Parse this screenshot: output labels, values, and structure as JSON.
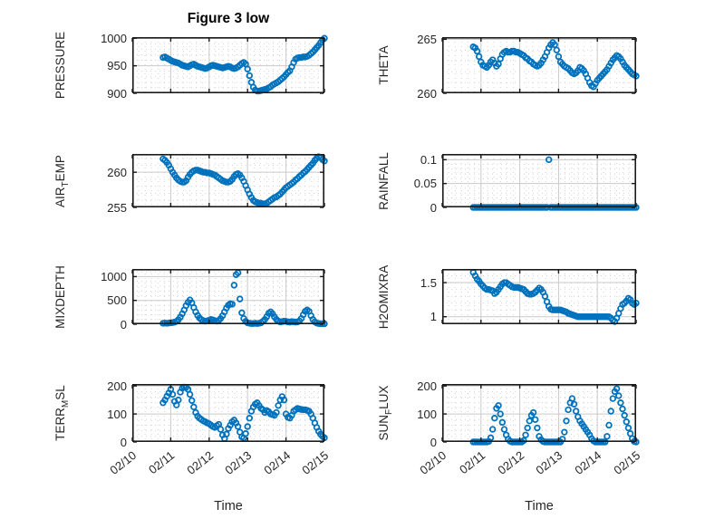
{
  "title": "Figure 3 low",
  "xlabel": "Time",
  "colors": {
    "marker": "#0072BD",
    "axis": "#1a1a1a",
    "major_grid": "#c9c9c9",
    "minor_grid": "#d2d2d2",
    "text": "#262626",
    "background": "#ffffff"
  },
  "time_axis": {
    "xlim_days": [
      0,
      5
    ],
    "major_tick_labels": [
      "02/10",
      "02/11",
      "02/12",
      "02/13",
      "02/14",
      "02/15"
    ],
    "minor_ticks_per_day": 6
  },
  "chart_data": [
    {
      "type": "scatter",
      "name": "pressure",
      "label": "PRESSURE",
      "label_parts": {
        "pre": "PRESSURE",
        "sub": "",
        "post": ""
      },
      "ylim": [
        900,
        1002
      ],
      "yticks": [
        900,
        950,
        1000
      ],
      "ytick_labels": [
        "900",
        "950",
        "1000"
      ],
      "minor_dy": 10,
      "grid": "major+minor",
      "series": {
        "t0": 0.8,
        "dt": 0.05,
        "values": [
          965,
          966,
          964,
          962,
          960,
          958,
          957,
          956,
          955,
          953,
          951,
          950,
          949,
          948,
          950,
          952,
          953,
          951,
          949,
          948,
          947,
          946,
          945,
          946,
          948,
          950,
          951,
          950,
          949,
          948,
          947,
          946,
          947,
          948,
          949,
          948,
          946,
          945,
          946,
          948,
          951,
          954,
          956,
          953,
          944,
          932,
          920,
          911,
          906,
          904,
          904,
          905,
          906,
          907,
          908,
          910,
          912,
          915,
          917,
          919,
          921,
          924,
          927,
          930,
          934,
          938,
          941,
          948,
          956,
          962,
          964,
          965,
          965,
          966,
          966,
          967,
          969,
          972,
          975,
          979,
          983,
          987,
          992,
          997,
          1000
        ]
      }
    },
    {
      "type": "scatter",
      "name": "theta",
      "label": "THETA",
      "label_parts": {
        "pre": "THETA",
        "sub": "",
        "post": ""
      },
      "ylim": [
        260,
        265.2
      ],
      "yticks": [
        260,
        265
      ],
      "ytick_labels": [
        "260",
        "265"
      ],
      "minor_dy": 1,
      "grid": "major+minor",
      "series": {
        "t0": 0.8,
        "dt": 0.05,
        "values": [
          264.3,
          264.2,
          263.9,
          263.4,
          262.9,
          262.6,
          262.5,
          262.4,
          262.6,
          262.9,
          263.1,
          262.8,
          262.5,
          262.7,
          263.2,
          263.6,
          263.8,
          263.9,
          263.8,
          263.8,
          263.9,
          263.9,
          263.8,
          263.8,
          263.7,
          263.6,
          263.5,
          263.3,
          263.2,
          263.0,
          262.9,
          262.7,
          262.6,
          262.5,
          262.6,
          262.8,
          263.1,
          263.4,
          263.8,
          264.2,
          264.5,
          264.7,
          264.5,
          264.0,
          263.4,
          262.9,
          262.7,
          262.5,
          262.4,
          262.3,
          262.1,
          261.9,
          261.8,
          261.9,
          262.1,
          262.4,
          262.3,
          262.1,
          261.8,
          261.4,
          261.0,
          260.7,
          260.6,
          260.9,
          261.2,
          261.4,
          261.6,
          261.8,
          262.0,
          262.2,
          262.5,
          262.8,
          263.1,
          263.3,
          263.5,
          263.4,
          263.2,
          262.9,
          262.6,
          262.4,
          262.2,
          262.0,
          261.8,
          261.7,
          261.6
        ]
      }
    },
    {
      "type": "scatter",
      "name": "air-temp",
      "label": "AIR_TEMP",
      "label_parts": {
        "pre": "AIR",
        "sub": "T",
        "post": "EMP"
      },
      "ylim": [
        255,
        262.6
      ],
      "yticks": [
        255,
        260
      ],
      "ytick_labels": [
        "255",
        "260"
      ],
      "minor_dy": 1,
      "grid": "major+minor",
      "series": {
        "t0": 0.8,
        "dt": 0.05,
        "values": [
          261.9,
          261.7,
          261.4,
          261.0,
          260.5,
          260.0,
          259.6,
          259.2,
          258.9,
          258.7,
          258.6,
          258.6,
          258.8,
          259.3,
          259.7,
          260.0,
          260.2,
          260.3,
          260.3,
          260.2,
          260.1,
          260.0,
          260.0,
          259.9,
          259.9,
          259.8,
          259.7,
          259.6,
          259.4,
          259.2,
          259.0,
          258.8,
          258.7,
          258.6,
          258.6,
          258.7,
          259.0,
          259.4,
          259.7,
          259.8,
          259.6,
          259.2,
          258.7,
          258.1,
          257.5,
          256.9,
          256.4,
          256.0,
          255.8,
          255.7,
          255.6,
          255.6,
          255.5,
          255.5,
          255.6,
          255.8,
          256.0,
          256.2,
          256.4,
          256.5,
          256.7,
          256.9,
          257.2,
          257.5,
          257.8,
          258.0,
          258.2,
          258.4,
          258.6,
          258.9,
          259.1,
          259.4,
          259.6,
          259.9,
          260.1,
          260.4,
          260.7,
          261.0,
          261.3,
          261.7,
          262.0,
          262.2,
          262.1,
          261.8,
          261.6
        ]
      }
    },
    {
      "type": "scatter",
      "name": "rainfall",
      "label": "RAINFALL",
      "label_parts": {
        "pre": "RAINFALL",
        "sub": "",
        "post": ""
      },
      "ylim": [
        0,
        0.112
      ],
      "yticks": [
        0,
        0.05,
        0.1
      ],
      "ytick_labels": [
        "0",
        "0.05",
        "0.1"
      ],
      "minor_dy": 0.01,
      "grid": "major+minor",
      "series": {
        "t0": 0.8,
        "dt": 0.05,
        "values": [
          0,
          0,
          0,
          0,
          0,
          0,
          0,
          0,
          0,
          0,
          0,
          0,
          0,
          0,
          0,
          0,
          0,
          0,
          0,
          0,
          0,
          0,
          0,
          0,
          0,
          0,
          0,
          0,
          0,
          0,
          0,
          0,
          0,
          0,
          0,
          0,
          0,
          0,
          0,
          0.1,
          0,
          0,
          0,
          0,
          0,
          0,
          0,
          0,
          0,
          0,
          0,
          0,
          0,
          0,
          0,
          0,
          0,
          0,
          0,
          0,
          0,
          0,
          0,
          0,
          0,
          0,
          0,
          0,
          0,
          0,
          0,
          0,
          0,
          0,
          0,
          0,
          0,
          0,
          0,
          0,
          0,
          0,
          0,
          0,
          0
        ]
      }
    },
    {
      "type": "scatter",
      "name": "mixdepth",
      "label": "MIXDEPTH",
      "label_parts": {
        "pre": "MIXDEPTH",
        "sub": "",
        "post": ""
      },
      "ylim": [
        0,
        1160
      ],
      "yticks": [
        0,
        500,
        1000
      ],
      "ytick_labels": [
        "0",
        "500",
        "1000"
      ],
      "minor_dy": 100,
      "grid": "major+minor",
      "series": {
        "t0": 0.8,
        "dt": 0.05,
        "values": [
          20,
          25,
          20,
          25,
          30,
          35,
          45,
          60,
          95,
          150,
          220,
          300,
          390,
          460,
          510,
          450,
          350,
          260,
          185,
          130,
          95,
          75,
          65,
          70,
          85,
          100,
          90,
          75,
          65,
          80,
          120,
          180,
          260,
          340,
          400,
          430,
          420,
          820,
          1040,
          1080,
          530,
          240,
          120,
          60,
          30,
          20,
          15,
          15,
          20,
          15,
          20,
          30,
          60,
          100,
          160,
          230,
          260,
          220,
          155,
          100,
          65,
          50,
          55,
          65,
          60,
          50,
          45,
          55,
          50,
          45,
          50,
          70,
          120,
          200,
          270,
          300,
          270,
          180,
          100,
          50,
          25,
          15,
          12,
          10,
          10
        ]
      }
    },
    {
      "type": "scatter",
      "name": "h2omixra",
      "label": "H2OMIXRA",
      "label_parts": {
        "pre": "H2OMIXRA",
        "sub": "",
        "post": ""
      },
      "ylim": [
        0.89,
        1.7
      ],
      "yticks": [
        1,
        1.5
      ],
      "ytick_labels": [
        "1",
        "1.5"
      ],
      "minor_dy": 0.1,
      "grid": "major+minor",
      "series": {
        "t0": 0.8,
        "dt": 0.05,
        "values": [
          1.65,
          1.6,
          1.55,
          1.52,
          1.48,
          1.45,
          1.42,
          1.4,
          1.4,
          1.39,
          1.38,
          1.34,
          1.36,
          1.4,
          1.44,
          1.48,
          1.5,
          1.5,
          1.48,
          1.46,
          1.44,
          1.43,
          1.43,
          1.43,
          1.42,
          1.41,
          1.4,
          1.37,
          1.34,
          1.33,
          1.33,
          1.34,
          1.36,
          1.39,
          1.42,
          1.4,
          1.36,
          1.3,
          1.22,
          1.15,
          1.11,
          1.1,
          1.1,
          1.1,
          1.1,
          1.1,
          1.09,
          1.08,
          1.07,
          1.05,
          1.04,
          1.03,
          1.02,
          1.01,
          1.0,
          1.0,
          1.0,
          1.0,
          1.0,
          1.0,
          1.0,
          1.0,
          1.0,
          1.0,
          1.0,
          1.0,
          1.0,
          1.0,
          1.0,
          1.0,
          1.0,
          0.98,
          0.95,
          0.93,
          0.98,
          1.05,
          1.12,
          1.18,
          1.2,
          1.23,
          1.27,
          1.25,
          1.2,
          1.18,
          1.2
        ]
      }
    },
    {
      "type": "scatter",
      "name": "terr-msl",
      "label": "TERR_MSL",
      "label_parts": {
        "pre": "TERR",
        "sub": "M",
        "post": "SL"
      },
      "ylim": [
        0,
        207
      ],
      "yticks": [
        0,
        100,
        200
      ],
      "ytick_labels": [
        "0",
        "100",
        "200"
      ],
      "minor_dy": 20,
      "grid": "major+minor",
      "series": {
        "t0": 0.8,
        "dt": 0.05,
        "values": [
          140,
          150,
          163,
          175,
          188,
          170,
          145,
          132,
          150,
          178,
          192,
          196,
          195,
          188,
          170,
          148,
          125,
          105,
          92,
          85,
          80,
          75,
          72,
          68,
          65,
          60,
          55,
          52,
          58,
          63,
          45,
          25,
          12,
          28,
          48,
          60,
          72,
          78,
          68,
          55,
          35,
          18,
          14,
          30,
          55,
          85,
          110,
          125,
          135,
          140,
          130,
          120,
          115,
          105,
          112,
          108,
          100,
          98,
          95,
          105,
          130,
          150,
          162,
          150,
          100,
          88,
          85,
          95,
          110,
          115,
          120,
          118,
          116,
          115,
          115,
          113,
          110,
          100,
          85,
          68,
          52,
          38,
          28,
          20,
          15
        ]
      }
    },
    {
      "type": "scatter",
      "name": "sun-flux",
      "label": "SUN_FLUX",
      "label_parts": {
        "pre": "SUN",
        "sub": "F",
        "post": "LUX"
      },
      "ylim": [
        0,
        207
      ],
      "yticks": [
        0,
        100,
        200
      ],
      "ytick_labels": [
        "0",
        "100",
        "200"
      ],
      "minor_dy": 20,
      "grid": "major+minor",
      "series": {
        "t0": 0.8,
        "dt": 0.05,
        "values": [
          0,
          0,
          0,
          0,
          0,
          0,
          0,
          0,
          2,
          15,
          45,
          85,
          120,
          130,
          100,
          70,
          45,
          25,
          10,
          3,
          0,
          0,
          0,
          0,
          0,
          0,
          5,
          25,
          50,
          75,
          95,
          105,
          80,
          50,
          20,
          8,
          2,
          0,
          0,
          0,
          0,
          0,
          0,
          0,
          0,
          0,
          10,
          35,
          75,
          115,
          140,
          155,
          135,
          110,
          90,
          75,
          65,
          55,
          45,
          35,
          25,
          12,
          4,
          0,
          0,
          0,
          0,
          0,
          0,
          20,
          60,
          110,
          155,
          180,
          190,
          165,
          140,
          118,
          95,
          72,
          50,
          30,
          12,
          2,
          0
        ]
      }
    }
  ]
}
